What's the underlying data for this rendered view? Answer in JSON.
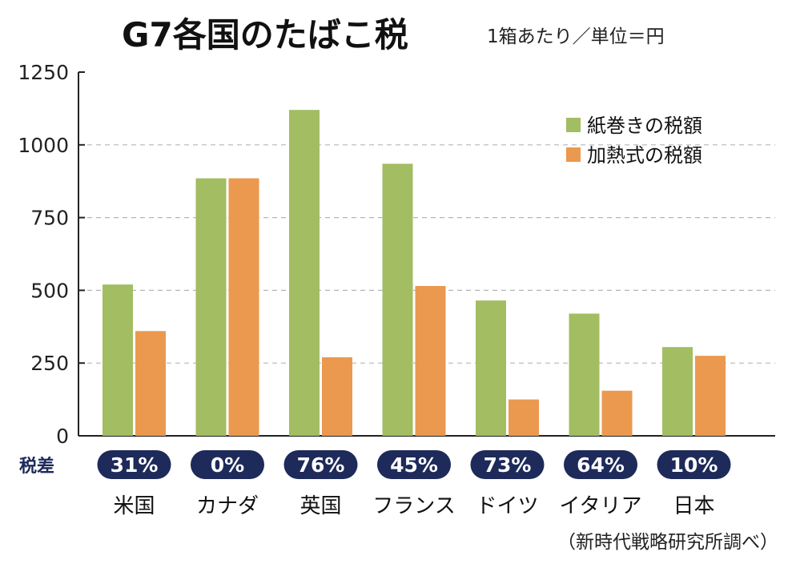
{
  "title": "G7各国のたばこ税",
  "subtitle": "1箱あたり／単位＝円",
  "source": "（新時代戦略研究所調べ）",
  "diff_label": "税差",
  "colors": {
    "green": "#a2bd62",
    "orange": "#eb994f",
    "pill": "#1d2a5a"
  },
  "chart_data": {
    "type": "bar",
    "categories": [
      "米国",
      "カナダ",
      "英国",
      "フランス",
      "ドイツ",
      "イタリア",
      "日本"
    ],
    "series": [
      {
        "name": "紙巻きの税額",
        "values": [
          520,
          885,
          1120,
          935,
          465,
          420,
          305
        ]
      },
      {
        "name": "加熱式の税額",
        "values": [
          360,
          885,
          270,
          515,
          125,
          155,
          275
        ]
      }
    ],
    "tax_difference": [
      "31%",
      "0%",
      "76%",
      "45%",
      "73%",
      "64%",
      "10%"
    ],
    "ylim": [
      0,
      1250
    ],
    "yticks": [
      0,
      250,
      500,
      750,
      1000,
      1250
    ],
    "grid": true,
    "legend": "top-right"
  }
}
